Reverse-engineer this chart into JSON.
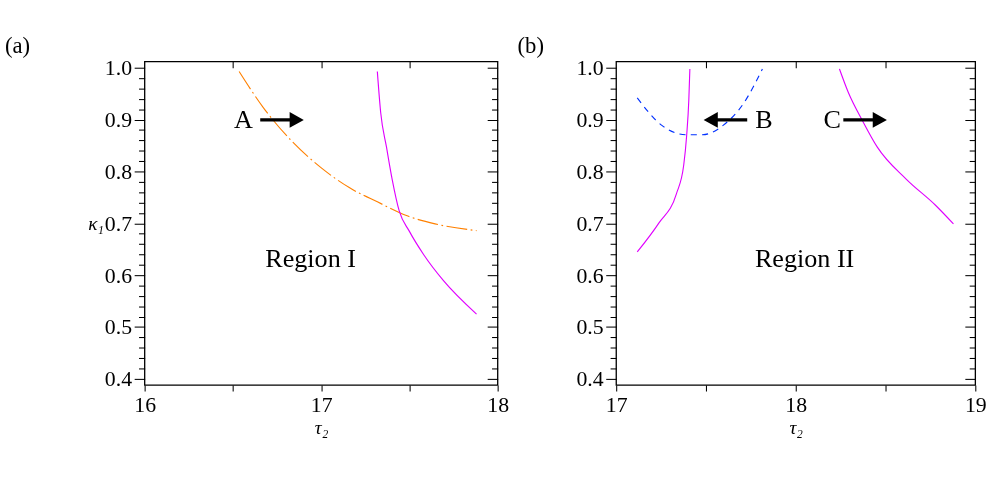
{
  "chart_data": [
    {
      "type": "line",
      "title": "(a)",
      "xlabel": "τ₂",
      "ylabel": "κ₁",
      "xlim": [
        16,
        18
      ],
      "ylim": [
        0.388,
        1.012
      ],
      "grid": false,
      "marker": "none",
      "xticks": [
        16,
        {
          "value": 16.5,
          "label": null
        },
        17,
        {
          "value": 17.5,
          "label": null
        },
        18
      ],
      "yticks": [
        0.4,
        {
          "value": 0.42,
          "label": null
        },
        {
          "value": 0.44,
          "label": null
        },
        {
          "value": 0.46,
          "label": null
        },
        {
          "value": 0.48,
          "label": null
        },
        0.5,
        {
          "value": 0.52,
          "label": null
        },
        {
          "value": 0.54,
          "label": null
        },
        {
          "value": 0.56,
          "label": null
        },
        {
          "value": 0.58,
          "label": null
        },
        0.6,
        {
          "value": 0.62,
          "label": null
        },
        {
          "value": 0.64,
          "label": null
        },
        {
          "value": 0.66,
          "label": null
        },
        {
          "value": 0.68,
          "label": null
        },
        0.7,
        {
          "value": 0.72,
          "label": null
        },
        {
          "value": 0.74,
          "label": null
        },
        {
          "value": 0.76,
          "label": null
        },
        {
          "value": 0.78,
          "label": null
        },
        0.8,
        {
          "value": 0.82,
          "label": null
        },
        {
          "value": 0.84,
          "label": null
        },
        {
          "value": 0.86,
          "label": null
        },
        {
          "value": 0.88,
          "label": null
        },
        0.9,
        {
          "value": 0.92,
          "label": null
        },
        {
          "value": 0.94,
          "label": null
        },
        {
          "value": 0.96,
          "label": null
        },
        {
          "value": 0.98,
          "label": null
        },
        {
          "value": 1,
          "label": "1.0"
        }
      ],
      "series": [
        {
          "color": "#ff8000",
          "line_style": "dashdot",
          "x": [
            16.535,
            16.673,
            16.835,
            16.997,
            17.159,
            17.321,
            17.483,
            17.645,
            17.88
          ],
          "values": [
            0.993,
            0.923,
            0.858,
            0.808,
            0.769,
            0.741,
            0.715,
            0.699,
            0.686
          ]
        },
        {
          "color": "#e000ff",
          "line_style": "solid",
          "x": [
            17.318,
            17.337,
            17.37,
            17.402,
            17.442,
            17.499,
            17.58,
            17.694,
            17.88
          ],
          "values": [
            0.993,
            0.914,
            0.847,
            0.785,
            0.724,
            0.685,
            0.64,
            0.589,
            0.525
          ]
        }
      ],
      "annotations": [
        "A",
        "Region I"
      ]
    },
    {
      "type": "line",
      "title": "(b)",
      "xlabel": "τ₂",
      "xlim": [
        17,
        19
      ],
      "ylim": [
        0.388,
        1.012
      ],
      "grid": false,
      "marker": "none",
      "xticks": [
        17,
        {
          "value": 17.5,
          "label": null
        },
        18,
        {
          "value": 18.5,
          "label": null
        },
        19
      ],
      "yticks": [
        0.4,
        {
          "value": 0.42,
          "label": null
        },
        {
          "value": 0.44,
          "label": null
        },
        {
          "value": 0.46,
          "label": null
        },
        {
          "value": 0.48,
          "label": null
        },
        0.5,
        {
          "value": 0.52,
          "label": null
        },
        {
          "value": 0.54,
          "label": null
        },
        {
          "value": 0.56,
          "label": null
        },
        {
          "value": 0.58,
          "label": null
        },
        0.6,
        {
          "value": 0.62,
          "label": null
        },
        {
          "value": 0.64,
          "label": null
        },
        {
          "value": 0.66,
          "label": null
        },
        {
          "value": 0.68,
          "label": null
        },
        0.7,
        {
          "value": 0.72,
          "label": null
        },
        {
          "value": 0.74,
          "label": null
        },
        {
          "value": 0.76,
          "label": null
        },
        {
          "value": 0.78,
          "label": null
        },
        0.8,
        {
          "value": 0.82,
          "label": null
        },
        {
          "value": 0.84,
          "label": null
        },
        {
          "value": 0.86,
          "label": null
        },
        {
          "value": 0.88,
          "label": null
        },
        0.9,
        {
          "value": 0.92,
          "label": null
        },
        {
          "value": 0.94,
          "label": null
        },
        {
          "value": 0.96,
          "label": null
        },
        {
          "value": 0.98,
          "label": null
        },
        {
          "value": 1,
          "label": "1.0"
        }
      ],
      "series": [
        {
          "color": "#0030ff",
          "line_style": "dashed",
          "x": [
            17.117,
            17.254,
            17.392,
            17.481,
            17.595,
            17.708,
            17.814
          ],
          "values": [
            0.942,
            0.889,
            0.871,
            0.871,
            0.889,
            0.931,
            0.998
          ]
        },
        {
          "color": "#e000ff",
          "line_style": "solid",
          "x": [
            17.117,
            17.238,
            17.335,
            17.376,
            17.392,
            17.404,
            17.41
          ],
          "values": [
            0.645,
            0.701,
            0.757,
            0.813,
            0.869,
            0.937,
            0.998
          ]
        },
        {
          "color": "#e000ff",
          "line_style": "solid",
          "x": [
            18.243,
            18.292,
            18.373,
            18.454,
            18.616,
            18.778,
            18.878
          ],
          "values": [
            0.998,
            0.953,
            0.897,
            0.847,
            0.785,
            0.735,
            0.699
          ]
        }
      ],
      "annotations": [
        "B",
        "C",
        "Region II"
      ]
    }
  ]
}
